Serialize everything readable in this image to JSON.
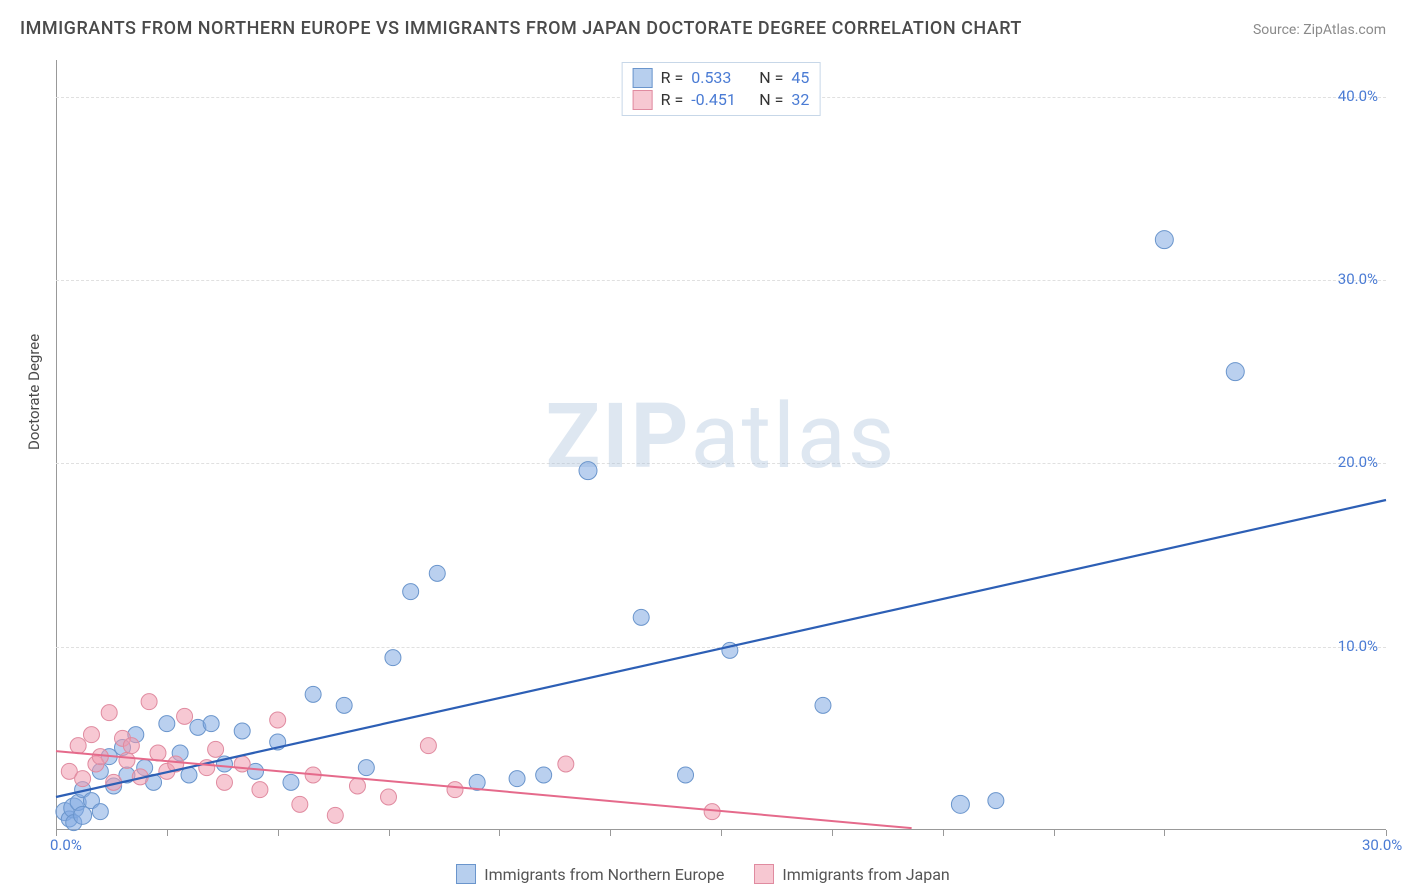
{
  "title": "IMMIGRANTS FROM NORTHERN EUROPE VS IMMIGRANTS FROM JAPAN DOCTORATE DEGREE CORRELATION CHART",
  "source": "Source: ZipAtlas.com",
  "watermark": "ZIPatlas",
  "y_axis_label": "Doctorate Degree",
  "chart": {
    "type": "scatter",
    "xlim": [
      0,
      30
    ],
    "ylim": [
      0,
      42
    ],
    "x_ticks": [
      0.0,
      2.5,
      5.0,
      7.5,
      10.0,
      12.5,
      15.0,
      17.5,
      20.0,
      22.5,
      25.0,
      30.0
    ],
    "x_tick_labels": {
      "0": "0.0%",
      "30": "30.0%"
    },
    "y_ticks": [
      10.0,
      20.0,
      30.0,
      40.0
    ],
    "y_tick_labels": {
      "10": "10.0%",
      "20": "20.0%",
      "30": "30.0%",
      "40": "40.0%"
    },
    "background_color": "#ffffff",
    "grid_color": "#e0e0e0",
    "series": [
      {
        "name": "Immigrants from Northern Europe",
        "color_fill": "rgba(130,170,225,0.55)",
        "color_stroke": "#6a95cc",
        "trend_color": "#2d5fb5",
        "trend_width": 2.2,
        "R": "0.533",
        "N": "45",
        "trend": {
          "x1": 0,
          "y1": 1.8,
          "x2": 30,
          "y2": 18.0
        },
        "points": [
          [
            0.2,
            1.0,
            9
          ],
          [
            0.3,
            0.6,
            8
          ],
          [
            0.4,
            1.2,
            10
          ],
          [
            0.4,
            0.4,
            8
          ],
          [
            0.5,
            1.5,
            8
          ],
          [
            0.6,
            2.2,
            8
          ],
          [
            0.6,
            0.8,
            9
          ],
          [
            0.8,
            1.6,
            8
          ],
          [
            1.0,
            3.2,
            8
          ],
          [
            1.0,
            1.0,
            8
          ],
          [
            1.2,
            4.0,
            8
          ],
          [
            1.3,
            2.4,
            8
          ],
          [
            1.5,
            4.5,
            8
          ],
          [
            1.6,
            3.0,
            8
          ],
          [
            1.8,
            5.2,
            8
          ],
          [
            2.0,
            3.4,
            8
          ],
          [
            2.2,
            2.6,
            8
          ],
          [
            2.5,
            5.8,
            8
          ],
          [
            2.8,
            4.2,
            8
          ],
          [
            3.0,
            3.0,
            8
          ],
          [
            3.2,
            5.6,
            8
          ],
          [
            3.5,
            5.8,
            8
          ],
          [
            3.8,
            3.6,
            8
          ],
          [
            4.2,
            5.4,
            8
          ],
          [
            4.5,
            3.2,
            8
          ],
          [
            5.0,
            4.8,
            8
          ],
          [
            5.3,
            2.6,
            8
          ],
          [
            5.8,
            7.4,
            8
          ],
          [
            6.5,
            6.8,
            8
          ],
          [
            7.0,
            3.4,
            8
          ],
          [
            7.6,
            9.4,
            8
          ],
          [
            8.0,
            13.0,
            8
          ],
          [
            8.6,
            14.0,
            8
          ],
          [
            9.5,
            2.6,
            8
          ],
          [
            10.4,
            2.8,
            8
          ],
          [
            11.0,
            3.0,
            8
          ],
          [
            12.0,
            19.6,
            9
          ],
          [
            13.2,
            11.6,
            8
          ],
          [
            15.2,
            9.8,
            8
          ],
          [
            17.3,
            6.8,
            8
          ],
          [
            20.4,
            1.4,
            9
          ],
          [
            21.2,
            1.6,
            8
          ],
          [
            25.0,
            32.2,
            9
          ],
          [
            26.6,
            25.0,
            9
          ],
          [
            14.2,
            3.0,
            8
          ]
        ]
      },
      {
        "name": "Immigrants from Japan",
        "color_fill": "rgba(240,155,175,0.55)",
        "color_stroke": "#e08ba0",
        "trend_color": "#e56a8b",
        "trend_width": 2.0,
        "R": "-0.451",
        "N": "32",
        "trend": {
          "x1": 0,
          "y1": 4.3,
          "x2": 19.3,
          "y2": 0.1
        },
        "points": [
          [
            0.3,
            3.2,
            8
          ],
          [
            0.5,
            4.6,
            8
          ],
          [
            0.6,
            2.8,
            8
          ],
          [
            0.8,
            5.2,
            8
          ],
          [
            0.9,
            3.6,
            8
          ],
          [
            1.0,
            4.0,
            8
          ],
          [
            1.2,
            6.4,
            8
          ],
          [
            1.3,
            2.6,
            8
          ],
          [
            1.5,
            5.0,
            8
          ],
          [
            1.6,
            3.8,
            8
          ],
          [
            1.7,
            4.6,
            8
          ],
          [
            1.9,
            2.9,
            8
          ],
          [
            2.1,
            7.0,
            8
          ],
          [
            2.3,
            4.2,
            8
          ],
          [
            2.5,
            3.2,
            8
          ],
          [
            2.7,
            3.6,
            8
          ],
          [
            2.9,
            6.2,
            8
          ],
          [
            3.4,
            3.4,
            8
          ],
          [
            3.6,
            4.4,
            8
          ],
          [
            3.8,
            2.6,
            8
          ],
          [
            4.2,
            3.6,
            8
          ],
          [
            4.6,
            2.2,
            8
          ],
          [
            5.0,
            6.0,
            8
          ],
          [
            5.5,
            1.4,
            8
          ],
          [
            5.8,
            3.0,
            8
          ],
          [
            6.3,
            0.8,
            8
          ],
          [
            6.8,
            2.4,
            8
          ],
          [
            7.5,
            1.8,
            8
          ],
          [
            8.4,
            4.6,
            8
          ],
          [
            9.0,
            2.2,
            8
          ],
          [
            11.5,
            3.6,
            8
          ],
          [
            14.8,
            1.0,
            8
          ]
        ]
      }
    ]
  },
  "legend_top": {
    "rows": [
      {
        "swatch_fill": "#b7cfee",
        "swatch_border": "#6a95cc",
        "r_val": "0.533",
        "n_val": "45"
      },
      {
        "swatch_fill": "#f7c8d2",
        "swatch_border": "#e08ba0",
        "r_val": "-0.451",
        "n_val": "32"
      }
    ],
    "r_label": "R  =",
    "n_label": "N  ="
  },
  "legend_bottom": {
    "items": [
      {
        "swatch_fill": "#b7cfee",
        "swatch_border": "#6a95cc",
        "label": "Immigrants from Northern Europe"
      },
      {
        "swatch_fill": "#f7c8d2",
        "swatch_border": "#e08ba0",
        "label": "Immigrants from Japan"
      }
    ]
  },
  "colors": {
    "title": "#4a4a4a",
    "source": "#8a8a8a",
    "axis": "#999999",
    "tick_text": "#4a7bd4"
  }
}
